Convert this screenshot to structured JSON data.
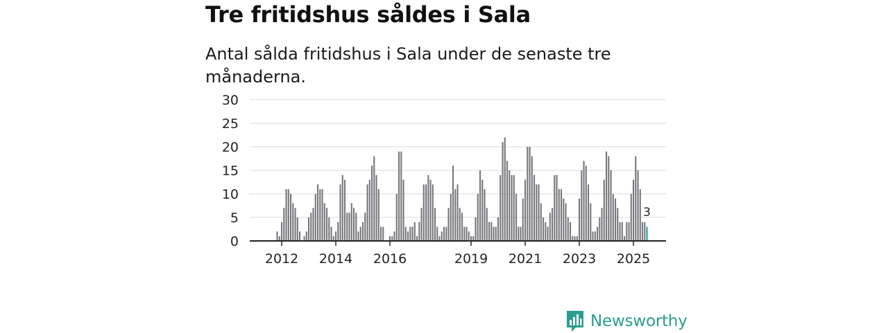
{
  "title": "Tre fritidshus såldes i Sala",
  "subtitle": "Antal sålda fritidshus i Sala under de senaste tre månaderna.",
  "logo": {
    "text": "Newsworthy",
    "icon": "newsworthy-bar-chart-icon"
  },
  "colors": {
    "bar": "#77767c",
    "highlight": "#23a08f",
    "grid": "#d9d9d9",
    "axis": "#222222",
    "text": "#222222",
    "brand": "#2a9d8f"
  },
  "chart_data": {
    "type": "bar",
    "title": "Tre fritidshus såldes i Sala",
    "xlabel": "",
    "ylabel": "",
    "ylim": [
      0,
      30
    ],
    "y_ticks": [
      0,
      5,
      10,
      15,
      20,
      25,
      30
    ],
    "x_tick_labels": [
      "2012",
      "2014",
      "2016",
      "2019",
      "2021",
      "2023",
      "2025"
    ],
    "x_tick_months": [
      "2012-01",
      "2014-01",
      "2016-01",
      "2019-01",
      "2021-01",
      "2023-01",
      "2025-01"
    ],
    "start_month": "2011-01",
    "grid": true,
    "series": [
      {
        "name": "Antal sålda fritidshus (rullande tre månader)",
        "values": [
          0,
          0,
          0,
          0,
          0,
          0,
          0,
          0,
          0,
          0,
          2,
          1,
          4,
          7,
          11,
          11,
          10,
          8,
          7,
          5,
          2,
          0,
          1,
          2,
          5,
          6,
          7,
          10,
          12,
          11,
          11,
          8,
          7,
          5,
          3,
          1,
          2,
          4,
          12,
          14,
          13,
          6,
          6,
          8,
          7,
          6,
          2,
          3,
          4,
          6,
          12,
          13,
          16,
          18,
          14,
          11,
          3,
          3,
          0,
          0,
          1,
          1,
          2,
          10,
          19,
          19,
          13,
          3,
          2,
          3,
          3,
          4,
          1,
          4,
          7,
          12,
          12,
          14,
          13,
          12,
          7,
          3,
          1,
          2,
          3,
          3,
          7,
          10,
          16,
          11,
          12,
          7,
          6,
          3,
          3,
          2,
          1,
          1,
          5,
          10,
          15,
          13,
          11,
          7,
          4,
          4,
          3,
          3,
          5,
          14,
          21,
          22,
          17,
          15,
          14,
          14,
          10,
          3,
          3,
          9,
          13,
          20,
          20,
          18,
          14,
          12,
          12,
          8,
          5,
          4,
          3,
          6,
          7,
          14,
          14,
          11,
          11,
          9,
          8,
          5,
          4,
          1,
          1,
          1,
          9,
          15,
          17,
          16,
          12,
          8,
          2,
          2,
          3,
          5,
          7,
          13,
          19,
          18,
          15,
          10,
          9,
          7,
          4,
          4,
          1,
          4,
          4,
          10,
          13,
          18,
          15,
          11,
          4,
          4,
          3
        ]
      }
    ],
    "highlight": {
      "month": "2025-07",
      "value": 3,
      "label": "3"
    }
  }
}
